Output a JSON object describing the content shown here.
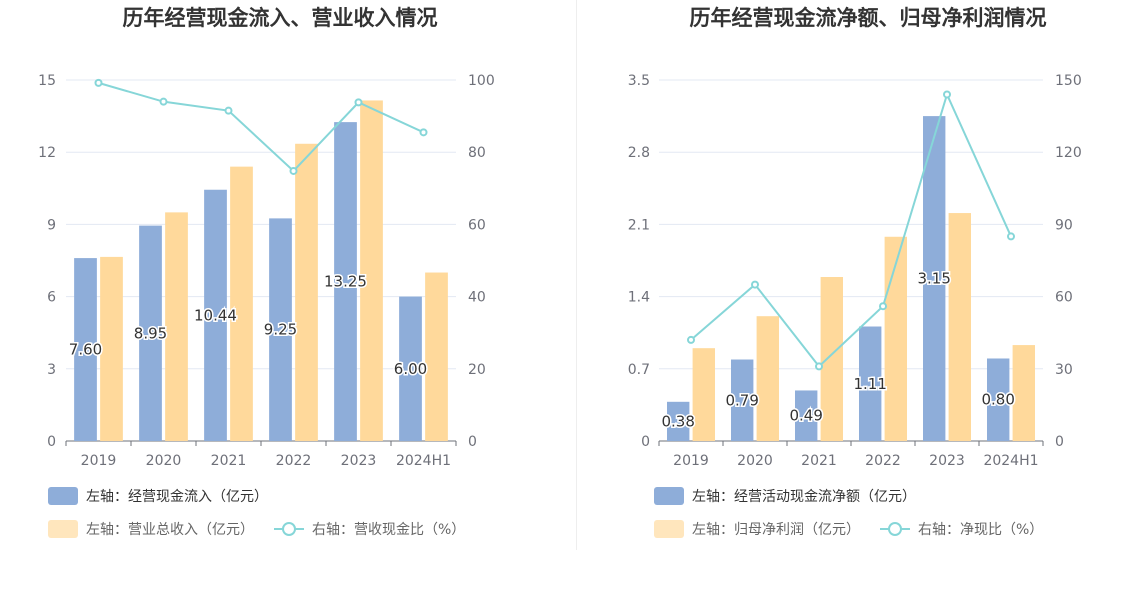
{
  "chart_data": [
    {
      "type": "bar",
      "title": "历年经营现金流入、营业收入情况",
      "categories": [
        "2019",
        "2020",
        "2021",
        "2022",
        "2023",
        "2024H1"
      ],
      "left_axis": {
        "min": 0,
        "max": 15,
        "ticks": [
          "0",
          "3",
          "6",
          "9",
          "12",
          "15"
        ]
      },
      "right_axis": {
        "min": 0,
        "max": 100,
        "ticks": [
          "0",
          "20",
          "40",
          "60",
          "80",
          "100"
        ]
      },
      "series": [
        {
          "name": "左轴：经营现金流入（亿元）",
          "type": "bar",
          "axis": "left",
          "color": "#8eadd9",
          "values": [
            7.6,
            8.95,
            10.44,
            9.25,
            13.25,
            6.0
          ],
          "labels": [
            "7.60",
            "8.95",
            "10.44",
            "9.25",
            "13.25",
            "6.00"
          ]
        },
        {
          "name": "左轴：营业总收入（亿元）",
          "type": "bar",
          "axis": "left",
          "color": "#ffd99b",
          "values": [
            7.65,
            9.5,
            11.4,
            12.35,
            14.15,
            7.0
          ]
        },
        {
          "name": "右轴：营收现金比（%）",
          "type": "line",
          "axis": "right",
          "color": "#86d6d8",
          "values": [
            99.2,
            94.0,
            91.5,
            74.8,
            93.8,
            85.5
          ]
        }
      ],
      "grid": true
    },
    {
      "type": "bar",
      "title": "历年经营现金流净额、归母净利润情况",
      "categories": [
        "2019",
        "2020",
        "2021",
        "2022",
        "2023",
        "2024H1"
      ],
      "left_axis": {
        "min": 0,
        "max": 3.5,
        "ticks": [
          "0",
          "0.7",
          "1.4",
          "2.1",
          "2.8",
          "3.5"
        ]
      },
      "right_axis": {
        "min": 0,
        "max": 150,
        "ticks": [
          "0",
          "30",
          "60",
          "90",
          "120",
          "150"
        ]
      },
      "series": [
        {
          "name": "左轴：经营活动现金流净额（亿元）",
          "type": "bar",
          "axis": "left",
          "color": "#8eadd9",
          "values": [
            0.38,
            0.79,
            0.49,
            1.11,
            3.15,
            0.8
          ],
          "labels": [
            "0.38",
            "0.79",
            "0.49",
            "1.11",
            "3.15",
            "0.80"
          ]
        },
        {
          "name": "左轴：归母净利润（亿元）",
          "type": "bar",
          "axis": "left",
          "color": "#ffd99b",
          "values": [
            0.9,
            1.21,
            1.59,
            1.98,
            2.21,
            0.93
          ]
        },
        {
          "name": "右轴：净现比（%）",
          "type": "line",
          "axis": "right",
          "color": "#86d6d8",
          "values": [
            42,
            65,
            31,
            56,
            144,
            85
          ]
        }
      ],
      "grid": true
    }
  ]
}
